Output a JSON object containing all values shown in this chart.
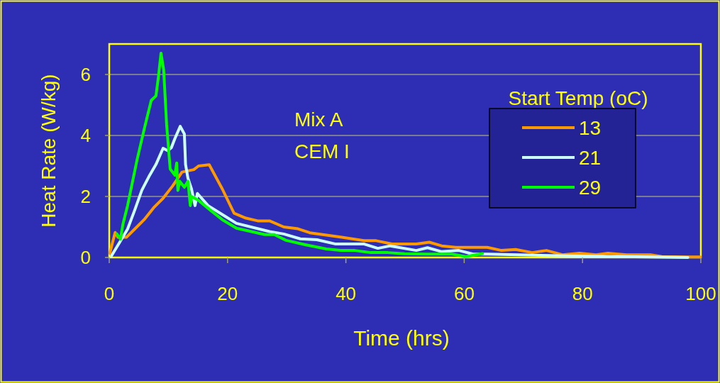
{
  "chart_data": {
    "type": "line",
    "xlabel": "Time (hrs)",
    "ylabel": "Heat Rate (W/kg)",
    "legend_title": "Start Temp (oC)",
    "annotations": [
      "Mix A",
      "CEM I"
    ],
    "xlim": [
      0,
      100
    ],
    "xticks": [
      0,
      20,
      40,
      60,
      80,
      100
    ],
    "ylim": [
      0,
      7
    ],
    "yticks": [
      0,
      2,
      4,
      6
    ],
    "grid": "y",
    "legend": "right",
    "marker": "none",
    "line_style": "solid",
    "series": [
      {
        "name": "13",
        "color": "#ff9900",
        "x": [
          0.1,
          1,
          1.5,
          2.9,
          4.3,
          5.9,
          7.5,
          9.1,
          10.7,
          12.3,
          14.3,
          15.1,
          16.9,
          19.1,
          21.1,
          23.1,
          25.1,
          27.1,
          29.5,
          31.9,
          33.9,
          39.1,
          43.1,
          45.1,
          47.8,
          51.9,
          54.1,
          56.2,
          58.6,
          63.9,
          66.3,
          68.7,
          71.5,
          73.9,
          76.6,
          79.5,
          82.3,
          84.3,
          87.4,
          91.5,
          93.4,
          97.8,
          99.9
        ],
        "values": [
          0.14,
          0.82,
          0.66,
          0.66,
          0.93,
          1.24,
          1.63,
          1.94,
          2.34,
          2.8,
          2.88,
          3.0,
          3.04,
          2.25,
          1.45,
          1.29,
          1.2,
          1.2,
          1.0,
          0.94,
          0.81,
          0.67,
          0.55,
          0.55,
          0.44,
          0.44,
          0.5,
          0.38,
          0.33,
          0.33,
          0.23,
          0.26,
          0.16,
          0.23,
          0.09,
          0.14,
          0.09,
          0.14,
          0.09,
          0.09,
          0.03,
          0.02,
          0.02
        ]
      },
      {
        "name": "21",
        "color": "#ccffff",
        "x": [
          0.3,
          1.9,
          3.1,
          4.3,
          5.5,
          6.7,
          7.9,
          9.1,
          9.9,
          10.5,
          11.1,
          12,
          12.7,
          12.9,
          13.3,
          13.9,
          14.5,
          14.9,
          16.7,
          19.5,
          21.5,
          27.1,
          29.5,
          32.3,
          35.1,
          38.3,
          43.1,
          45.4,
          47.5,
          51.9,
          53.8,
          56.2,
          59.1,
          61.5,
          63.9,
          77.5,
          97.8
        ],
        "values": [
          0.03,
          0.54,
          0.93,
          1.55,
          2.2,
          2.65,
          3.05,
          3.58,
          3.5,
          3.6,
          3.9,
          4.3,
          4.05,
          3.05,
          2.6,
          2.25,
          1.7,
          2.1,
          1.7,
          1.36,
          1.12,
          0.85,
          0.77,
          0.61,
          0.58,
          0.44,
          0.44,
          0.3,
          0.38,
          0.23,
          0.32,
          0.19,
          0.23,
          0.11,
          0.11,
          0.05,
          0
        ]
      },
      {
        "name": "29",
        "color": "#00ff00",
        "x": [
          1.3,
          1.9,
          2.3,
          3.1,
          4.7,
          5.9,
          7.1,
          7.9,
          8.3,
          8.75,
          9.2,
          9.7,
          10.3,
          11.1,
          11.4,
          11.6,
          11.9,
          12.7,
          13.3,
          13.7,
          13.9,
          15.1,
          17.1,
          19.1,
          21.5,
          26.3,
          27.9,
          29.9,
          33.1,
          36.7,
          39.1,
          41.5,
          44.2,
          47.1,
          49.9,
          53.5,
          57.9,
          60.3,
          63.1
        ],
        "values": [
          0.77,
          0.6,
          1.08,
          1.7,
          3.2,
          4.2,
          5.15,
          5.3,
          5.9,
          6.7,
          6.15,
          4.35,
          2.9,
          2.7,
          3.1,
          2.2,
          2.5,
          2.3,
          2.5,
          1.7,
          2.0,
          1.87,
          1.55,
          1.24,
          0.96,
          0.75,
          0.75,
          0.56,
          0.42,
          0.28,
          0.23,
          0.23,
          0.16,
          0.16,
          0.12,
          0.11,
          0.11,
          0.03,
          0.13
        ]
      }
    ]
  }
}
